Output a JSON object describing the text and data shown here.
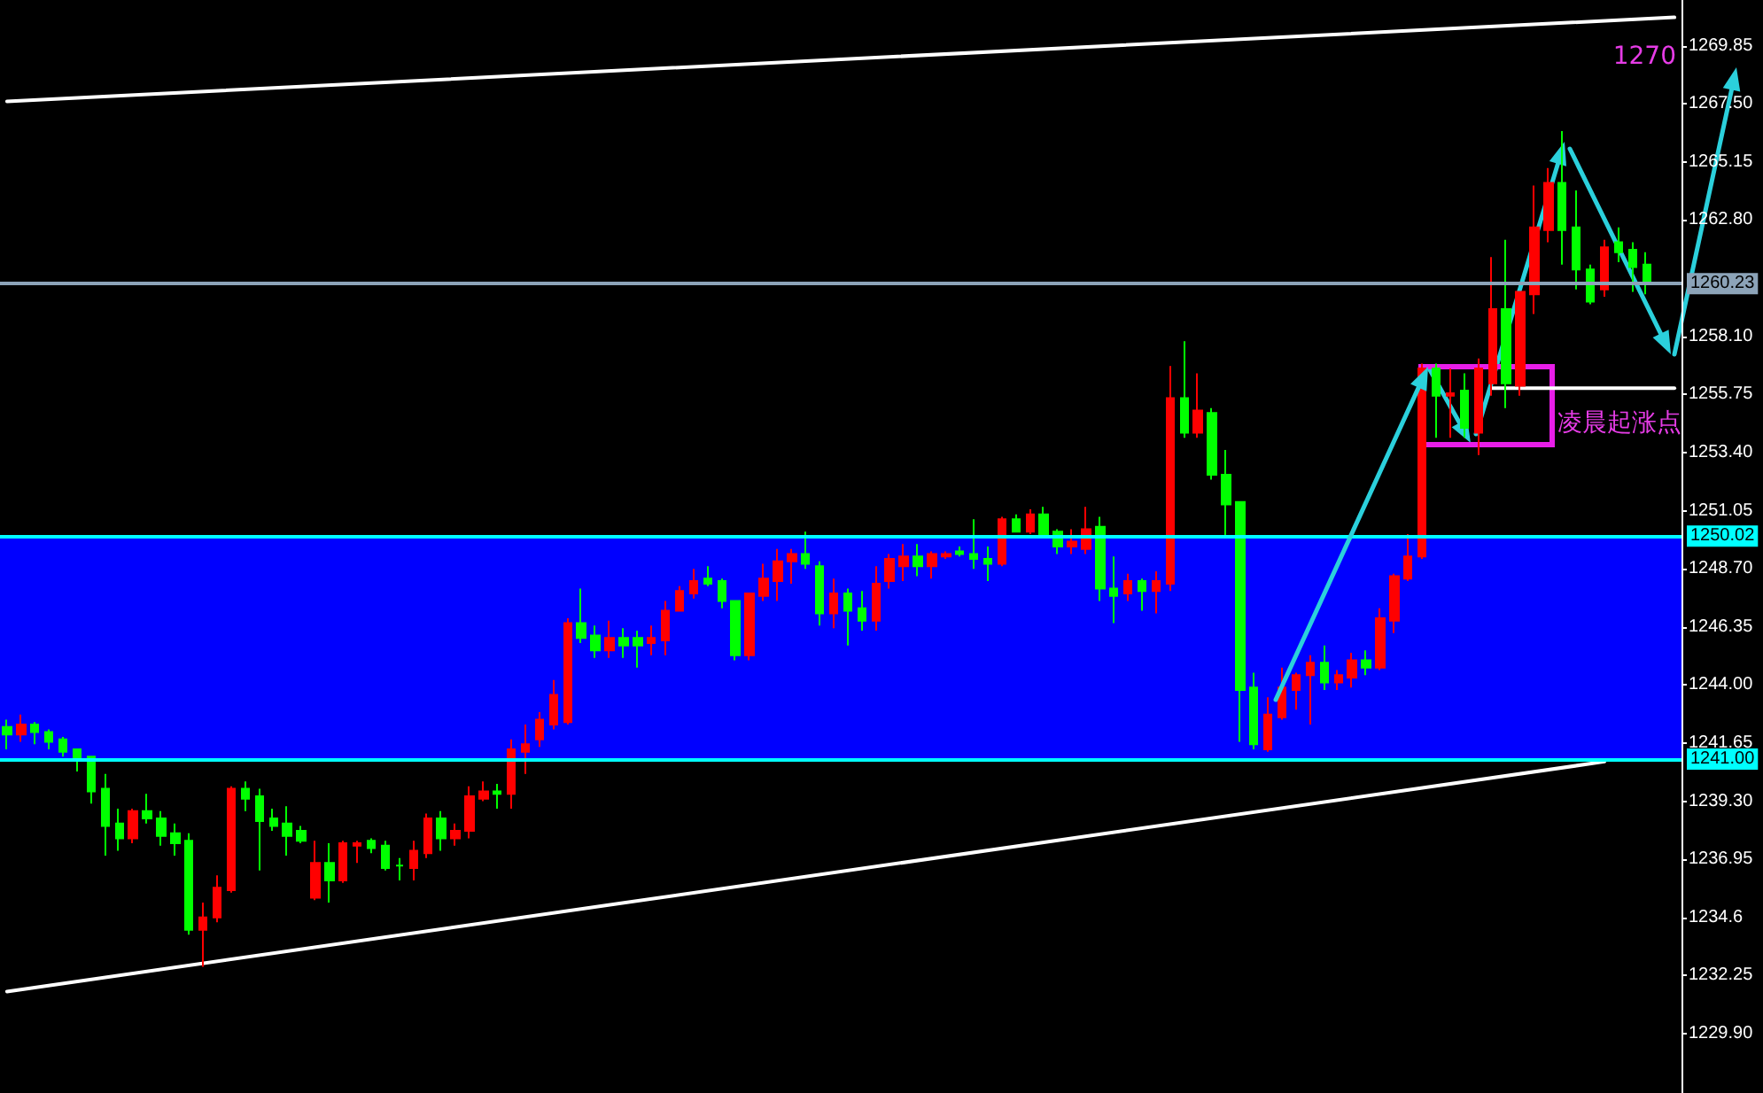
{
  "chart_data": {
    "type": "candlestick",
    "categories": [
      null,
      null,
      null,
      null,
      null,
      null,
      null,
      null,
      null,
      null,
      null,
      null,
      null,
      null,
      null,
      null,
      null,
      null,
      null,
      null,
      null,
      null,
      null,
      null,
      null,
      null,
      null,
      null,
      null,
      null,
      null,
      null,
      null,
      null,
      null,
      null,
      null,
      null,
      null,
      null,
      null,
      null,
      null,
      null,
      null,
      null,
      null,
      null,
      null,
      null,
      null,
      null,
      null,
      null,
      null,
      null,
      null,
      null,
      null,
      null,
      null,
      null,
      null,
      null,
      null,
      null,
      null,
      null,
      null,
      null,
      null,
      null,
      null,
      null,
      null,
      null,
      null,
      null,
      null,
      null,
      null,
      null,
      null,
      null,
      null,
      null,
      null,
      null,
      null,
      null,
      null,
      null,
      null,
      null,
      null,
      null,
      null,
      null,
      null,
      null,
      null,
      null,
      null,
      null,
      null,
      null,
      null,
      null,
      null,
      null,
      null,
      null,
      null,
      null,
      null,
      null,
      null,
      null,
      null,
      null
    ],
    "series": [
      {
        "ohlc": [
          [
            1242.3,
            1242.6,
            1241.4,
            1242.0
          ],
          [
            1242.0,
            1242.8,
            1241.7,
            1242.4
          ],
          [
            1242.4,
            1242.5,
            1241.6,
            1242.1
          ],
          [
            1242.1,
            1242.2,
            1241.4,
            1241.7
          ],
          [
            1241.8,
            1241.9,
            1241.1,
            1241.3
          ],
          [
            1241.4,
            1241.4,
            1240.5,
            1241.0
          ],
          [
            1241.1,
            1241.1,
            1239.2,
            1239.7
          ],
          [
            1239.8,
            1240.4,
            1237.1,
            1238.3
          ],
          [
            1238.4,
            1239.0,
            1237.3,
            1237.8
          ],
          [
            1237.8,
            1239.0,
            1237.6,
            1238.9
          ],
          [
            1238.9,
            1239.6,
            1238.4,
            1238.6
          ],
          [
            1238.6,
            1238.9,
            1237.5,
            1237.9
          ],
          [
            1238.0,
            1238.4,
            1237.1,
            1237.6
          ],
          [
            1237.7,
            1238.0,
            1233.9,
            1234.1
          ],
          [
            1234.1,
            1235.2,
            1232.6,
            1234.6
          ],
          [
            1234.6,
            1236.3,
            1234.4,
            1235.8
          ],
          [
            1235.7,
            1239.9,
            1235.6,
            1239.8
          ],
          [
            1239.8,
            1240.1,
            1238.9,
            1239.4
          ],
          [
            1239.5,
            1239.8,
            1236.5,
            1238.5
          ],
          [
            1238.6,
            1239.0,
            1238.1,
            1238.3
          ],
          [
            1238.4,
            1239.1,
            1237.1,
            1237.9
          ],
          [
            1238.1,
            1238.3,
            1237.6,
            1237.7
          ],
          [
            1235.4,
            1237.7,
            1235.3,
            1236.8
          ],
          [
            1236.8,
            1237.6,
            1235.2,
            1236.1
          ],
          [
            1236.1,
            1237.7,
            1236.0,
            1237.6
          ],
          [
            1237.5,
            1237.7,
            1236.8,
            1237.6
          ],
          [
            1237.7,
            1237.8,
            1237.2,
            1237.4
          ],
          [
            1237.5,
            1237.7,
            1236.5,
            1236.6
          ],
          [
            1236.7,
            1237.0,
            1236.1,
            1236.7
          ],
          [
            1236.6,
            1237.7,
            1236.1,
            1237.3
          ],
          [
            1237.2,
            1238.8,
            1237.0,
            1238.6
          ],
          [
            1238.6,
            1238.9,
            1237.3,
            1237.8
          ],
          [
            1237.8,
            1238.4,
            1237.5,
            1238.1
          ],
          [
            1238.1,
            1239.9,
            1237.8,
            1239.5
          ],
          [
            1239.4,
            1240.1,
            1239.3,
            1239.7
          ],
          [
            1239.7,
            1240.0,
            1239.0,
            1239.6
          ],
          [
            1239.6,
            1241.8,
            1239.0,
            1241.4
          ],
          [
            1241.3,
            1242.4,
            1240.4,
            1241.6
          ],
          [
            1241.8,
            1242.9,
            1241.5,
            1242.6
          ],
          [
            1242.4,
            1244.2,
            1242.2,
            1243.6
          ],
          [
            1242.5,
            1246.7,
            1242.4,
            1246.5
          ],
          [
            1246.5,
            1247.9,
            1245.7,
            1245.9
          ],
          [
            1246.0,
            1246.4,
            1245.1,
            1245.4
          ],
          [
            1245.4,
            1246.6,
            1245.1,
            1245.9
          ],
          [
            1245.9,
            1246.3,
            1245.1,
            1245.6
          ],
          [
            1245.9,
            1246.2,
            1244.7,
            1245.6
          ],
          [
            1245.7,
            1246.4,
            1245.2,
            1245.9
          ],
          [
            1245.8,
            1247.4,
            1245.2,
            1247.0
          ],
          [
            1247.0,
            1248.0,
            1247.0,
            1247.8
          ],
          [
            1247.7,
            1248.7,
            1247.5,
            1248.2
          ],
          [
            1248.3,
            1248.8,
            1248.0,
            1248.1
          ],
          [
            1248.2,
            1248.3,
            1247.1,
            1247.4
          ],
          [
            1247.4,
            1247.4,
            1245.0,
            1245.2
          ],
          [
            1245.2,
            1247.7,
            1245.0,
            1247.7
          ],
          [
            1247.6,
            1248.9,
            1247.4,
            1248.3
          ],
          [
            1248.2,
            1249.5,
            1247.4,
            1249.0
          ],
          [
            1249.0,
            1249.5,
            1248.1,
            1249.3
          ],
          [
            1249.3,
            1250.2,
            1248.7,
            1248.9
          ],
          [
            1248.8,
            1249.0,
            1246.4,
            1246.9
          ],
          [
            1246.9,
            1248.3,
            1246.3,
            1247.7
          ],
          [
            1247.7,
            1247.9,
            1245.6,
            1247.0
          ],
          [
            1247.1,
            1247.8,
            1246.2,
            1246.6
          ],
          [
            1246.6,
            1248.8,
            1246.2,
            1248.1
          ],
          [
            1248.2,
            1249.3,
            1247.9,
            1249.1
          ],
          [
            1248.8,
            1249.7,
            1248.2,
            1249.2
          ],
          [
            1249.2,
            1249.7,
            1248.4,
            1248.8
          ],
          [
            1248.8,
            1249.4,
            1248.3,
            1249.3
          ],
          [
            1249.2,
            1249.4,
            1249.1,
            1249.3
          ],
          [
            1249.4,
            1249.6,
            1249.2,
            1249.3
          ],
          [
            1249.3,
            1250.7,
            1248.7,
            1249.1
          ],
          [
            1249.1,
            1249.6,
            1248.2,
            1248.9
          ],
          [
            1248.9,
            1250.8,
            1248.8,
            1250.7
          ],
          [
            1250.7,
            1250.9,
            1250.2,
            1250.2
          ],
          [
            1250.2,
            1251.1,
            1250.1,
            1250.9
          ],
          [
            1250.9,
            1251.2,
            1250.0,
            1250.1
          ],
          [
            1250.2,
            1250.3,
            1249.3,
            1249.6
          ],
          [
            1249.6,
            1250.3,
            1249.3,
            1249.8
          ],
          [
            1249.5,
            1251.2,
            1249.3,
            1250.3
          ],
          [
            1250.4,
            1250.8,
            1247.4,
            1247.9
          ],
          [
            1247.9,
            1249.2,
            1246.5,
            1247.6
          ],
          [
            1247.7,
            1248.5,
            1247.4,
            1248.2
          ],
          [
            1248.2,
            1248.3,
            1247.0,
            1247.8
          ],
          [
            1247.8,
            1248.6,
            1246.9,
            1248.2
          ],
          [
            1248.1,
            1256.9,
            1247.8,
            1255.6
          ],
          [
            1255.6,
            1257.9,
            1254.0,
            1254.2
          ],
          [
            1254.2,
            1256.6,
            1254.0,
            1255.1
          ],
          [
            1255.0,
            1255.2,
            1252.3,
            1252.5
          ],
          [
            1252.5,
            1253.5,
            1250.0,
            1251.3
          ],
          [
            1251.4,
            1251.4,
            1241.7,
            1243.8
          ],
          [
            1243.9,
            1244.5,
            1241.4,
            1241.6
          ],
          [
            1241.4,
            1243.5,
            1241.3,
            1242.8
          ],
          [
            1242.7,
            1244.7,
            1242.6,
            1243.9
          ],
          [
            1243.8,
            1244.5,
            1243.0,
            1244.4
          ],
          [
            1244.4,
            1245.2,
            1242.4,
            1244.9
          ],
          [
            1244.9,
            1245.6,
            1243.8,
            1244.1
          ],
          [
            1244.1,
            1244.6,
            1243.8,
            1244.4
          ],
          [
            1244.3,
            1245.3,
            1243.9,
            1245.0
          ],
          [
            1245.0,
            1245.4,
            1244.4,
            1244.7
          ],
          [
            1244.7,
            1247.1,
            1244.6,
            1246.7
          ],
          [
            1246.6,
            1248.5,
            1246.1,
            1248.4
          ],
          [
            1248.3,
            1250.1,
            1248.2,
            1249.2
          ],
          [
            1249.2,
            1257.0,
            1249.1,
            1256.8
          ],
          [
            1256.8,
            1257.0,
            1254.0,
            1255.7
          ],
          [
            1255.7,
            1256.8,
            1254.0,
            1255.8
          ],
          [
            1255.9,
            1256.6,
            1254.0,
            1254.4
          ],
          [
            1254.2,
            1257.2,
            1253.3,
            1256.8
          ],
          [
            1256.2,
            1261.3,
            1255.7,
            1259.2
          ],
          [
            1259.2,
            1262.0,
            1255.2,
            1256.2
          ],
          [
            1256.1,
            1259.9,
            1255.7,
            1259.9
          ],
          [
            1259.8,
            1264.2,
            1259.0,
            1262.5
          ],
          [
            1262.4,
            1264.9,
            1261.9,
            1264.3
          ],
          [
            1264.3,
            1266.4,
            1261.0,
            1262.4
          ],
          [
            1262.5,
            1264.0,
            1260.0,
            1260.8
          ],
          [
            1260.8,
            1261.0,
            1259.4,
            1259.5
          ],
          [
            1260.0,
            1262.0,
            1259.7,
            1261.7
          ],
          [
            1261.9,
            1262.5,
            1261.1,
            1261.5
          ],
          [
            1261.6,
            1261.9,
            1259.9,
            1260.9
          ],
          [
            1261.0,
            1261.5,
            1259.8,
            1260.3
          ],
          null,
          null
        ],
        "colors": [
          "#00ff00",
          "#ff0000",
          "#00ff00",
          "#00ff00",
          "#00ff00",
          "#00ff00",
          "#00ff00",
          "#00ff00",
          "#00ff00",
          "#ff0000",
          "#00ff00",
          "#00ff00",
          "#00ff00",
          "#00ff00",
          "#ff0000",
          "#ff0000",
          "#ff0000",
          "#00ff00",
          "#00ff00",
          "#00ff00",
          "#00ff00",
          "#00ff00",
          "#ff0000",
          "#00ff00",
          "#ff0000",
          "#ff0000",
          "#00ff00",
          "#00ff00",
          "#00ff00",
          "#ff0000",
          "#ff0000",
          "#00ff00",
          "#ff0000",
          "#ff0000",
          "#ff0000",
          "#00ff00",
          "#ff0000",
          "#ff0000",
          "#ff0000",
          "#ff0000",
          "#ff0000",
          "#00ff00",
          "#00ff00",
          "#ff0000",
          "#00ff00",
          "#00ff00",
          "#ff0000",
          "#ff0000",
          "#ff0000",
          "#ff0000",
          "#00ff00",
          "#00ff00",
          "#00ff00",
          "#ff0000",
          "#ff0000",
          "#ff0000",
          "#ff0000",
          "#00ff00",
          "#00ff00",
          "#ff0000",
          "#00ff00",
          "#00ff00",
          "#ff0000",
          "#ff0000",
          "#ff0000",
          "#00ff00",
          "#ff0000",
          "#ff0000",
          "#00ff00",
          "#00ff00",
          "#00ff00",
          "#ff0000",
          "#00ff00",
          "#ff0000",
          "#00ff00",
          "#00ff00",
          "#ff0000",
          "#ff0000",
          "#00ff00",
          "#00ff00",
          "#ff0000",
          "#00ff00",
          "#ff0000",
          "#ff0000",
          "#00ff00",
          "#ff0000",
          "#00ff00",
          "#00ff00",
          "#00ff00",
          "#00ff00",
          "#ff0000",
          "#ff0000",
          "#ff0000",
          "#ff0000",
          "#00ff00",
          "#ff0000",
          "#ff0000",
          "#00ff00",
          "#ff0000",
          "#ff0000",
          "#ff0000",
          "#ff0000",
          "#00ff00",
          "#ff0000",
          "#00ff00",
          "#ff0000",
          "#ff0000",
          "#00ff00",
          "#ff0000",
          "#ff0000",
          "#ff0000",
          "#00ff00",
          "#00ff00",
          "#00ff00",
          "#ff0000",
          "#00ff00",
          "#00ff00",
          "#00ff00",
          null,
          null
        ]
      },
      {
        "type": "line",
        "color": "#ffffff",
        "values": [
          1267.6,
          null,
          null,
          null,
          null,
          null,
          null,
          null,
          null,
          null,
          null,
          null,
          null,
          null,
          null,
          null,
          null,
          null,
          null,
          null,
          null,
          null,
          null,
          null,
          null,
          null,
          null,
          null,
          null,
          null,
          null,
          null,
          null,
          null,
          null,
          null,
          null,
          null,
          null,
          null,
          null,
          null,
          null,
          null,
          null,
          null,
          null,
          null,
          null,
          null,
          null,
          null,
          null,
          null,
          null,
          null,
          null,
          null,
          null,
          null,
          null,
          null,
          null,
          null,
          null,
          null,
          null,
          null,
          null,
          null,
          null,
          null,
          null,
          null,
          null,
          null,
          null,
          null,
          null,
          null,
          null,
          null,
          null,
          null,
          null,
          null,
          null,
          null,
          null,
          null,
          null,
          null,
          null,
          null,
          null,
          null,
          null,
          null,
          null,
          null,
          null,
          null,
          null,
          null,
          null,
          null,
          null,
          null,
          null,
          null,
          null,
          null,
          null,
          null,
          null,
          null,
          null,
          null,
          null,
          1271.0
        ]
      },
      {
        "type": "line",
        "color": "#ffffff",
        "values": [
          1231.6,
          null,
          null,
          null,
          null,
          null,
          null,
          null,
          null,
          null,
          null,
          null,
          null,
          null,
          null,
          null,
          null,
          null,
          null,
          null,
          null,
          null,
          null,
          null,
          null,
          null,
          null,
          null,
          null,
          null,
          null,
          null,
          null,
          null,
          null,
          null,
          null,
          null,
          null,
          null,
          null,
          null,
          null,
          null,
          null,
          null,
          null,
          null,
          null,
          null,
          null,
          null,
          null,
          null,
          null,
          null,
          null,
          null,
          null,
          null,
          null,
          null,
          null,
          null,
          null,
          null,
          null,
          null,
          null,
          null,
          null,
          null,
          null,
          null,
          null,
          null,
          null,
          null,
          null,
          null,
          null,
          null,
          null,
          null,
          null,
          null,
          null,
          null,
          null,
          null,
          null,
          null,
          null,
          null,
          null,
          null,
          null,
          null,
          null,
          null,
          null,
          null,
          null,
          null,
          null,
          null,
          null,
          null,
          null,
          null,
          null,
          null,
          null,
          null,
          1240.9,
          null,
          null,
          null,
          null,
          null
        ]
      },
      {
        "type": "line",
        "color": "#ffffff",
        "values": [
          null,
          null,
          null,
          null,
          null,
          null,
          null,
          null,
          null,
          null,
          null,
          null,
          null,
          null,
          null,
          null,
          null,
          null,
          null,
          null,
          null,
          null,
          null,
          null,
          null,
          null,
          null,
          null,
          null,
          null,
          null,
          null,
          null,
          null,
          null,
          null,
          null,
          null,
          null,
          null,
          null,
          null,
          null,
          null,
          null,
          null,
          null,
          null,
          null,
          null,
          null,
          null,
          null,
          null,
          null,
          null,
          null,
          null,
          null,
          null,
          null,
          null,
          null,
          null,
          null,
          null,
          null,
          null,
          null,
          null,
          null,
          null,
          null,
          null,
          null,
          null,
          null,
          null,
          null,
          null,
          null,
          null,
          null,
          null,
          null,
          null,
          null,
          null,
          null,
          null,
          null,
          null,
          null,
          null,
          null,
          null,
          null,
          null,
          null,
          null,
          null,
          null,
          null,
          null,
          null,
          null,
          1256.0,
          1256.0,
          1256.0,
          1256.0,
          1256.0,
          1256.0,
          1256.0,
          1256.0,
          1256.0,
          1256.0,
          1256.0,
          1256.0,
          1256.0,
          1256.0
        ]
      }
    ],
    "ylim": [
      1227.5,
      1271.7
    ],
    "yticks": [
      {
        "value": 1229.9,
        "label": "1229.90"
      },
      1232.25,
      1234.6,
      {
        "value": 1236.95,
        "label": "1236.95"
      },
      {
        "value": 1239.3,
        "label": "1239.30"
      },
      1241.65,
      {
        "value": 1244,
        "label": "1244.00"
      },
      {
        "value": 1246.35,
        "label": "1246.35"
      },
      {
        "value": 1248.7,
        "label": "1248.70"
      },
      {
        "value": 1251.05,
        "label": "1251.05"
      },
      {
        "value": 1253.4,
        "label": "1253.40"
      },
      {
        "value": 1255.75,
        "label": "1255.75"
      },
      {
        "value": 1258.1,
        "label": "1258.10"
      },
      {
        "value": 1262.8,
        "label": "1262.80"
      },
      {
        "value": 1265.15,
        "label": "1265.15"
      },
      {
        "value": 1267.5,
        "label": "1267.50"
      },
      {
        "value": 1269.85,
        "label": "1269.85"
      }
    ],
    "ref_lines": [
      {
        "axis": "y",
        "value": 1260.23,
        "label": "1260.23",
        "color": "#8ca3b8"
      },
      {
        "axis": "y",
        "value": 1250.02,
        "label": "1250.02",
        "color": "#00ffff"
      },
      {
        "axis": "y",
        "value": 1241,
        "label": "1241.00",
        "color": "#00ffff"
      }
    ],
    "bands": [
      {
        "axis": "y",
        "from": 1241,
        "to": 1250.02,
        "color": "#0000ff"
      }
    ],
    "annotations": [
      "1270",
      "凌晨起涨点"
    ],
    "tick_labels": "y"
  }
}
